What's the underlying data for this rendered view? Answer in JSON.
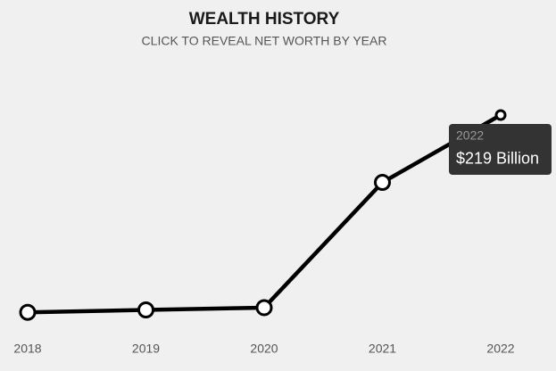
{
  "chart_data": {
    "type": "line",
    "title": "WEALTH HISTORY",
    "subtitle": "CLICK TO REVEAL NET WORTH BY YEAR",
    "categories": [
      "2018",
      "2019",
      "2020",
      "2021",
      "2022"
    ],
    "values": [
      19.9,
      22.3,
      24.6,
      151,
      219
    ],
    "value_labels": [
      null,
      null,
      null,
      null,
      "$219 Billion"
    ],
    "color": "#000000"
  }
}
